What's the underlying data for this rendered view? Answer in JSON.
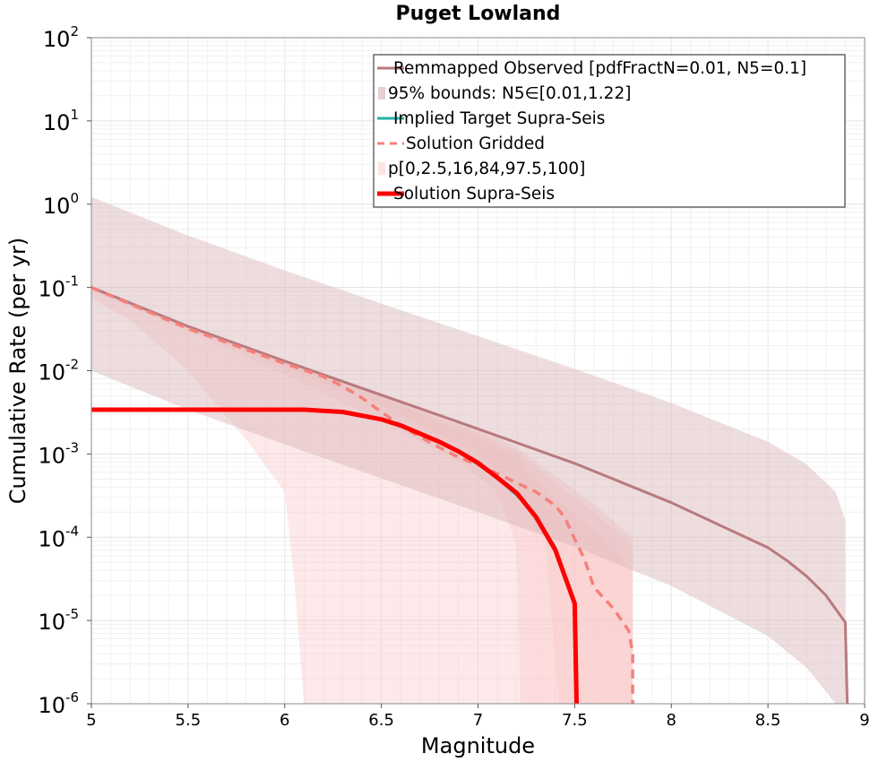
{
  "chart_data": {
    "type": "line",
    "title": "Puget Lowland",
    "xlabel": "Magnitude",
    "ylabel": "Cumulative Rate (per yr)",
    "xlim": [
      5,
      9
    ],
    "ylim": [
      1e-06,
      100
    ],
    "yscale": "log",
    "grid": true,
    "legend_position": "top-right",
    "x_ticks": [
      "5",
      "5.5",
      "6",
      "6.5",
      "7",
      "7.5",
      "8",
      "8.5",
      "9"
    ],
    "y_ticks": [
      {
        "base": "10",
        "exp": "-6"
      },
      {
        "base": "10",
        "exp": "-5"
      },
      {
        "base": "10",
        "exp": "-4"
      },
      {
        "base": "10",
        "exp": "-3"
      },
      {
        "base": "10",
        "exp": "-2"
      },
      {
        "base": "10",
        "exp": "-1"
      },
      {
        "base": "10",
        "exp": "0"
      },
      {
        "base": "10",
        "exp": "1"
      },
      {
        "base": "10",
        "exp": "2"
      }
    ],
    "bands": [
      {
        "color": "#f9c8c8",
        "opacity": 0.4,
        "upper": [
          [
            5,
            0.105
          ],
          [
            5.5,
            0.036
          ],
          [
            6,
            0.0138
          ],
          [
            6.5,
            0.0054
          ],
          [
            7,
            0.0021
          ],
          [
            7.2,
            0.0012
          ],
          [
            7.4,
            0.00055
          ],
          [
            7.6,
            0.00025
          ],
          [
            7.8,
            0.0001
          ],
          [
            7.8,
            1e-06
          ]
        ],
        "lower": [
          [
            5,
            0.075
          ],
          [
            5.2,
            0.04
          ],
          [
            5.5,
            0.01
          ],
          [
            5.8,
            0.0015
          ],
          [
            6.0,
            0.00035
          ],
          [
            6.05,
            3e-05
          ],
          [
            6.1,
            1e-06
          ]
        ]
      },
      {
        "color": "#f9c8c8",
        "opacity": 0.4,
        "upper": [
          [
            5,
            0.103
          ],
          [
            5.5,
            0.034
          ],
          [
            6,
            0.013
          ],
          [
            6.5,
            0.005
          ],
          [
            7,
            0.0018
          ],
          [
            7.2,
            0.0011
          ],
          [
            7.4,
            0.00045
          ],
          [
            7.6,
            0.0002
          ],
          [
            7.8,
            8e-05
          ],
          [
            7.8,
            1e-06
          ]
        ],
        "lower": [
          [
            5,
            0.09
          ],
          [
            5.5,
            0.03
          ],
          [
            6,
            0.009
          ],
          [
            6.5,
            0.0025
          ],
          [
            6.9,
            0.0008
          ],
          [
            7.1,
            0.00035
          ],
          [
            7.2,
            8e-05
          ],
          [
            7.22,
            1e-06
          ]
        ]
      },
      {
        "color": "#f9c8c8",
        "opacity": 0.4,
        "upper": [
          [
            5,
            0.1
          ],
          [
            5.5,
            0.033
          ],
          [
            6,
            0.0125
          ],
          [
            6.5,
            0.0048
          ],
          [
            7,
            0.0016
          ],
          [
            7.2,
            0.0009
          ],
          [
            7.4,
            0.0003
          ],
          [
            7.6,
            0.00012
          ],
          [
            7.8,
            4e-05
          ],
          [
            7.8,
            1e-06
          ]
        ],
        "lower": [
          [
            5,
            0.095
          ],
          [
            5.5,
            0.032
          ],
          [
            6,
            0.011
          ],
          [
            6.5,
            0.0038
          ],
          [
            7,
            0.001
          ],
          [
            7.2,
            0.0004
          ],
          [
            7.35,
            8e-05
          ],
          [
            7.42,
            1e-06
          ]
        ]
      },
      {
        "color": "#d9b3b5",
        "opacity": 0.45,
        "upper": [
          [
            5,
            1.22
          ],
          [
            5.5,
            0.42
          ],
          [
            6,
            0.16
          ],
          [
            6.5,
            0.064
          ],
          [
            7,
            0.026
          ],
          [
            7.5,
            0.0105
          ],
          [
            8,
            0.0041
          ],
          [
            8.5,
            0.0014
          ],
          [
            8.7,
            0.00075
          ],
          [
            8.85,
            0.00035
          ],
          [
            8.9,
            0.00016
          ],
          [
            8.9,
            1e-06
          ]
        ],
        "lower": [
          [
            5,
            0.01
          ],
          [
            5.5,
            0.0034
          ],
          [
            6,
            0.0013
          ],
          [
            6.5,
            0.00051
          ],
          [
            7,
            0.0002
          ],
          [
            7.5,
            7.7e-05
          ],
          [
            8,
            2.6e-05
          ],
          [
            8.5,
            6.5e-06
          ],
          [
            8.7,
            2.7e-06
          ],
          [
            8.85,
            1e-06
          ]
        ]
      }
    ],
    "series": [
      {
        "name": "Remmapped Observed [pdfFractN=0.01, N5=0.1]",
        "color": "#b87a7e",
        "width": 3,
        "dash": "",
        "points": [
          [
            5,
            0.1
          ],
          [
            5.5,
            0.034
          ],
          [
            6,
            0.013
          ],
          [
            6.5,
            0.0051
          ],
          [
            7,
            0.002
          ],
          [
            7.5,
            0.00077
          ],
          [
            8,
            0.00026
          ],
          [
            8.5,
            7.5e-05
          ],
          [
            8.6,
            5.2e-05
          ],
          [
            8.7,
            3.4e-05
          ],
          [
            8.8,
            2e-05
          ],
          [
            8.9,
            9.5e-06
          ],
          [
            8.91,
            1e-06
          ]
        ]
      },
      {
        "name": "Implied Target Supra-Seis",
        "color": "#20b2aa",
        "width": 3,
        "dash": "",
        "points": [
          [
            5,
            0.0034
          ],
          [
            6,
            0.0034
          ],
          [
            6.1,
            0.0034
          ],
          [
            6.3,
            0.0032
          ],
          [
            6.5,
            0.0026
          ],
          [
            6.6,
            0.0022
          ],
          [
            6.8,
            0.0014
          ],
          [
            6.9,
            0.00107
          ],
          [
            7,
            0.00075
          ],
          [
            7.1,
            0.00051
          ],
          [
            7.2,
            0.00032
          ],
          [
            7.3,
            0.00018
          ],
          [
            7.4,
            7.5e-05
          ],
          [
            7.5,
            1.65e-05
          ],
          [
            7.51,
            1e-06
          ]
        ]
      },
      {
        "name": "Solution Gridded",
        "color": "#f5807a",
        "width": 3.5,
        "dash": "10,7",
        "points": [
          [
            5,
            0.1
          ],
          [
            5.5,
            0.032
          ],
          [
            5.8,
            0.018
          ],
          [
            6,
            0.0122
          ],
          [
            6.2,
            0.0085
          ],
          [
            6.3,
            0.0065
          ],
          [
            6.4,
            0.0047
          ],
          [
            6.5,
            0.0032
          ],
          [
            6.6,
            0.0022
          ],
          [
            6.7,
            0.0016
          ],
          [
            6.8,
            0.0012
          ],
          [
            6.9,
            0.00091
          ],
          [
            7,
            0.00074
          ],
          [
            7.1,
            0.00058
          ],
          [
            7.2,
            0.00045
          ],
          [
            7.3,
            0.00035
          ],
          [
            7.4,
            0.00024
          ],
          [
            7.45,
            0.00017
          ],
          [
            7.5,
            9.5e-05
          ],
          [
            7.55,
            5.5e-05
          ],
          [
            7.6,
            2.5e-05
          ],
          [
            7.7,
            1.4e-05
          ],
          [
            7.78,
            7.5e-06
          ],
          [
            7.8,
            4e-06
          ],
          [
            7.8,
            1e-06
          ]
        ]
      },
      {
        "name": "Solution Supra-Seis",
        "color": "#ff0000",
        "width": 5,
        "dash": "",
        "points": [
          [
            5,
            0.0034
          ],
          [
            6,
            0.0034
          ],
          [
            6.1,
            0.0034
          ],
          [
            6.3,
            0.0032
          ],
          [
            6.5,
            0.0026
          ],
          [
            6.6,
            0.0022
          ],
          [
            6.8,
            0.0014
          ],
          [
            6.9,
            0.00107
          ],
          [
            7,
            0.00078
          ],
          [
            7.1,
            0.00052
          ],
          [
            7.2,
            0.00034
          ],
          [
            7.3,
            0.000175
          ],
          [
            7.4,
            7e-05
          ],
          [
            7.5,
            1.6e-05
          ],
          [
            7.51,
            1e-06
          ]
        ]
      }
    ],
    "legend": [
      {
        "label": "Remmapped Observed [pdfFractN=0.01, N5=0.1]",
        "kind": "line",
        "color": "#b87a7e",
        "width": 3,
        "dash": ""
      },
      {
        "label": "95% bounds: N5∈[0.01,1.22]",
        "kind": "patch",
        "color": "#e6d0d2"
      },
      {
        "label": "Implied Target Supra-Seis",
        "kind": "line",
        "color": "#20b2aa",
        "width": 3,
        "dash": ""
      },
      {
        "label": "Solution Gridded",
        "kind": "line",
        "color": "#f5807a",
        "width": 3,
        "dash": "8,6"
      },
      {
        "label": "p[0,2.5,16,84,97.5,100]",
        "kind": "patch",
        "color": "#fde4e4"
      },
      {
        "label": "Solution Supra-Seis",
        "kind": "line",
        "color": "#ff0000",
        "width": 5,
        "dash": ""
      }
    ]
  }
}
